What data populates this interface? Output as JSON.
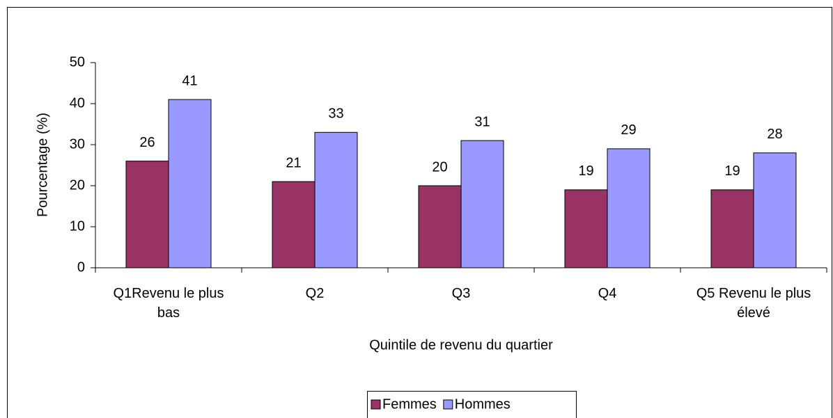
{
  "chart_data": {
    "type": "bar",
    "xlabel": "Quintile de revenu du quartier",
    "ylabel": "Pourcentage (%)",
    "categories": [
      "Q1Revenu le plus bas",
      "Q2",
      "Q3",
      "Q4",
      "Q5 Revenu le plus élevé"
    ],
    "series": [
      {
        "name": "Femmes",
        "color": "#993366",
        "values": [
          26,
          21,
          20,
          19,
          19
        ]
      },
      {
        "name": "Hommes",
        "color": "#9999ff",
        "values": [
          41,
          33,
          31,
          29,
          28
        ]
      }
    ],
    "ylim": [
      0,
      50
    ],
    "yticks": [
      0,
      10,
      20,
      30,
      40,
      50
    ],
    "grid": false,
    "legend": "bottom"
  }
}
